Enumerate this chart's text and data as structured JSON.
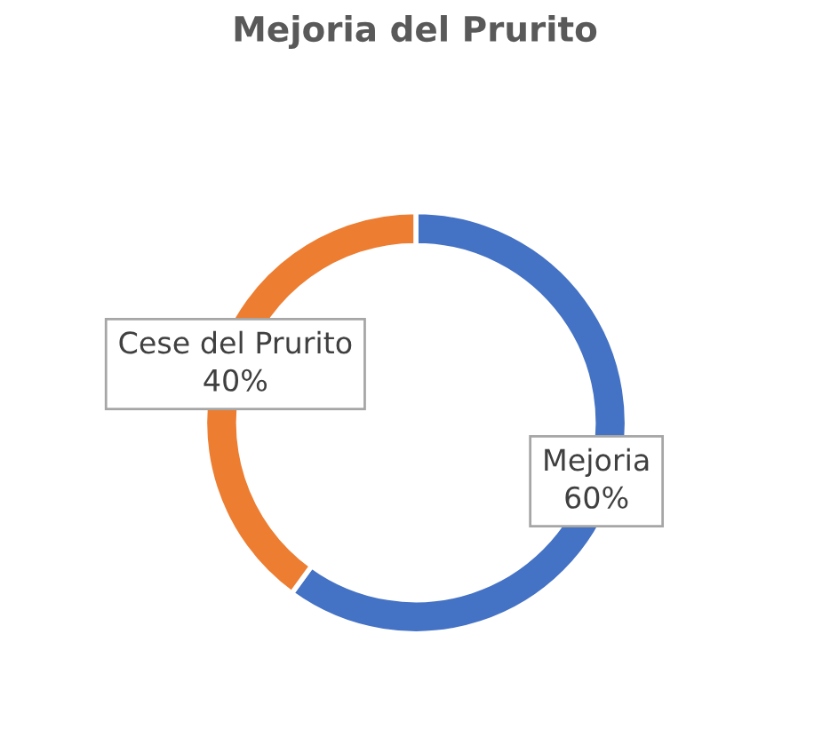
{
  "chart_data": {
    "type": "donut",
    "title": "Mejoria del Prurito",
    "categories": [
      "Mejoria",
      "Cese del Prurito"
    ],
    "values": [
      60,
      40
    ],
    "colors": [
      "#4472c4",
      "#ed7d31"
    ],
    "value_labels": [
      "60%",
      "40%"
    ],
    "legend": false
  }
}
